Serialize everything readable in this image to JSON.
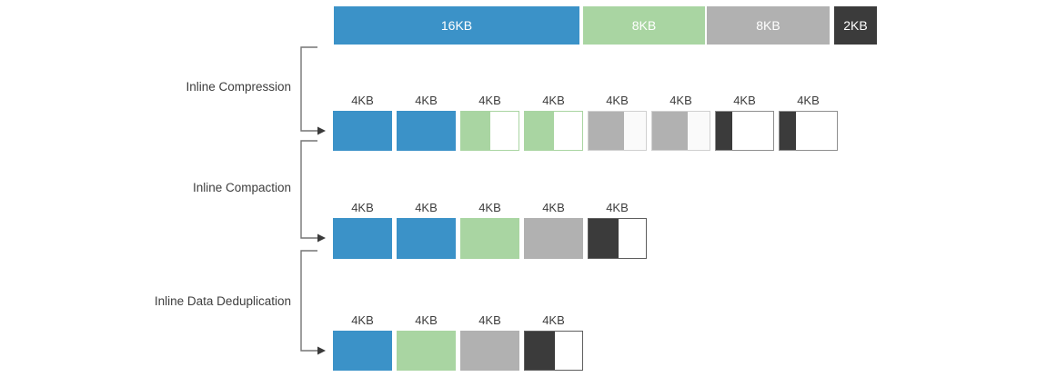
{
  "palette": {
    "blue": "#3b92c8",
    "green": "#a9d5a2",
    "gray": "#b1b1b1",
    "dark": "#3b3b3b"
  },
  "connector": {
    "line_color": "#757575",
    "arrow_color": "#3a3a3a"
  },
  "text_colors": {
    "bar_label": "#ffffff",
    "block_label": "#3d3d3d",
    "stage_label": "#3d3d3d"
  },
  "top_bar": {
    "segments": [
      {
        "label": "16KB",
        "color": "blue"
      },
      {
        "label": "8KB",
        "color": "green"
      },
      {
        "label": "8KB",
        "color": "gray"
      },
      {
        "label": "2KB",
        "color": "dark"
      }
    ]
  },
  "stages": [
    {
      "name": "Inline Compression",
      "row": {
        "block_label": "4KB",
        "blocks": [
          {
            "color": "blue",
            "fill": 1
          },
          {
            "color": "blue",
            "fill": 1
          },
          {
            "color": "green",
            "fill": 0.5,
            "rest": "#ffffff",
            "border": "#a9d5a2"
          },
          {
            "color": "green",
            "fill": 0.5,
            "rest": "#ffffff",
            "border": "#a9d5a2"
          },
          {
            "color": "gray",
            "fill": 0.62,
            "rest": "#fafafa",
            "border": "#d0d0d0"
          },
          {
            "color": "gray",
            "fill": 0.62,
            "rest": "#fafafa",
            "border": "#d0d0d0"
          },
          {
            "color": "dark",
            "fill": 0.28,
            "rest": "#ffffff",
            "border": "#8f8f8f"
          },
          {
            "color": "dark",
            "fill": 0.28,
            "rest": "#ffffff",
            "border": "#8f8f8f"
          }
        ]
      }
    },
    {
      "name": "Inline Compaction",
      "row": {
        "block_label": "4KB",
        "blocks": [
          {
            "color": "blue",
            "fill": 1
          },
          {
            "color": "blue",
            "fill": 1
          },
          {
            "color": "green",
            "fill": 1
          },
          {
            "color": "gray",
            "fill": 1
          },
          {
            "color": "dark",
            "fill": 0.52,
            "rest": "#ffffff",
            "border": "#5e5e5e"
          }
        ]
      }
    },
    {
      "name": "Inline Data Deduplication",
      "row": {
        "block_label": "4KB",
        "blocks": [
          {
            "color": "blue",
            "fill": 1
          },
          {
            "color": "green",
            "fill": 1
          },
          {
            "color": "gray",
            "fill": 1
          },
          {
            "color": "dark",
            "fill": 0.52,
            "rest": "#ffffff",
            "border": "#5e5e5e"
          }
        ]
      }
    }
  ]
}
